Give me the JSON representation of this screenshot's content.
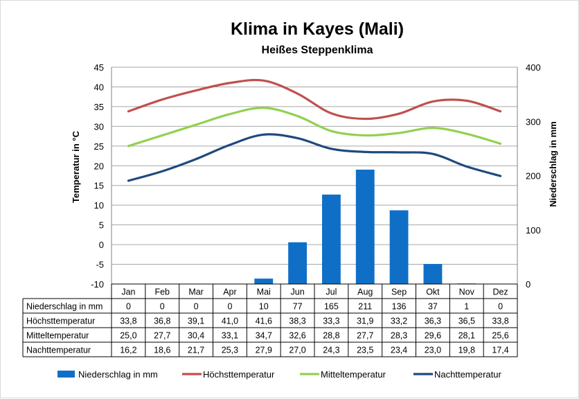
{
  "chart_data": {
    "type": "bar",
    "title": "Klima in Kayes (Mali)",
    "subtitle": "Heißes Steppenklima",
    "categories": [
      "Jan",
      "Feb",
      "Mar",
      "Apr",
      "Mai",
      "Jun",
      "Jul",
      "Aug",
      "Sep",
      "Okt",
      "Nov",
      "Dez"
    ],
    "ylabel_left": "Temperatur in °C",
    "ylabel_right": "Niederschlag in mm",
    "ylim_left": [
      -10,
      45
    ],
    "yticks_left": [
      "45",
      "40",
      "35",
      "30",
      "25",
      "20",
      "15",
      "10",
      "5",
      "0",
      "-5",
      "-10"
    ],
    "ylim_right": [
      0,
      400
    ],
    "yticks_right": [
      "400",
      "300",
      "200",
      "100",
      "0"
    ],
    "grid": true,
    "legend_position": "bottom",
    "series": [
      {
        "name": "Niederschlag in mm",
        "kind": "bar",
        "axis": "right",
        "color": "#0f6fc6",
        "values": [
          0,
          0,
          0,
          0,
          10,
          77,
          165,
          211,
          136,
          37,
          1,
          0
        ],
        "labels": [
          "0",
          "0",
          "0",
          "0",
          "10",
          "77",
          "165",
          "211",
          "136",
          "37",
          "1",
          "0"
        ]
      },
      {
        "name": "Höchsttemperatur",
        "kind": "line",
        "axis": "left",
        "color": "#c0504d",
        "values": [
          33.8,
          36.8,
          39.1,
          41.0,
          41.6,
          38.3,
          33.3,
          31.9,
          33.2,
          36.3,
          36.5,
          33.8
        ],
        "labels": [
          "33,8",
          "36,8",
          "39,1",
          "41,0",
          "41,6",
          "38,3",
          "33,3",
          "31,9",
          "33,2",
          "36,3",
          "36,5",
          "33,8"
        ]
      },
      {
        "name": "Mitteltemperatur",
        "kind": "line",
        "axis": "left",
        "color": "#92d050",
        "values": [
          25.0,
          27.7,
          30.4,
          33.1,
          34.7,
          32.6,
          28.8,
          27.7,
          28.3,
          29.6,
          28.1,
          25.6
        ],
        "labels": [
          "25,0",
          "27,7",
          "30,4",
          "33,1",
          "34,7",
          "32,6",
          "28,8",
          "27,7",
          "28,3",
          "29,6",
          "28,1",
          "25,6"
        ]
      },
      {
        "name": "Nachttemperatur",
        "kind": "line",
        "axis": "left",
        "color": "#1f497d",
        "values": [
          16.2,
          18.6,
          21.7,
          25.3,
          27.9,
          27.0,
          24.3,
          23.5,
          23.4,
          23.0,
          19.8,
          17.4
        ],
        "labels": [
          "16,2",
          "18,6",
          "21,7",
          "25,3",
          "27,9",
          "27,0",
          "24,3",
          "23,5",
          "23,4",
          "23,0",
          "19,8",
          "17,4"
        ]
      }
    ]
  }
}
